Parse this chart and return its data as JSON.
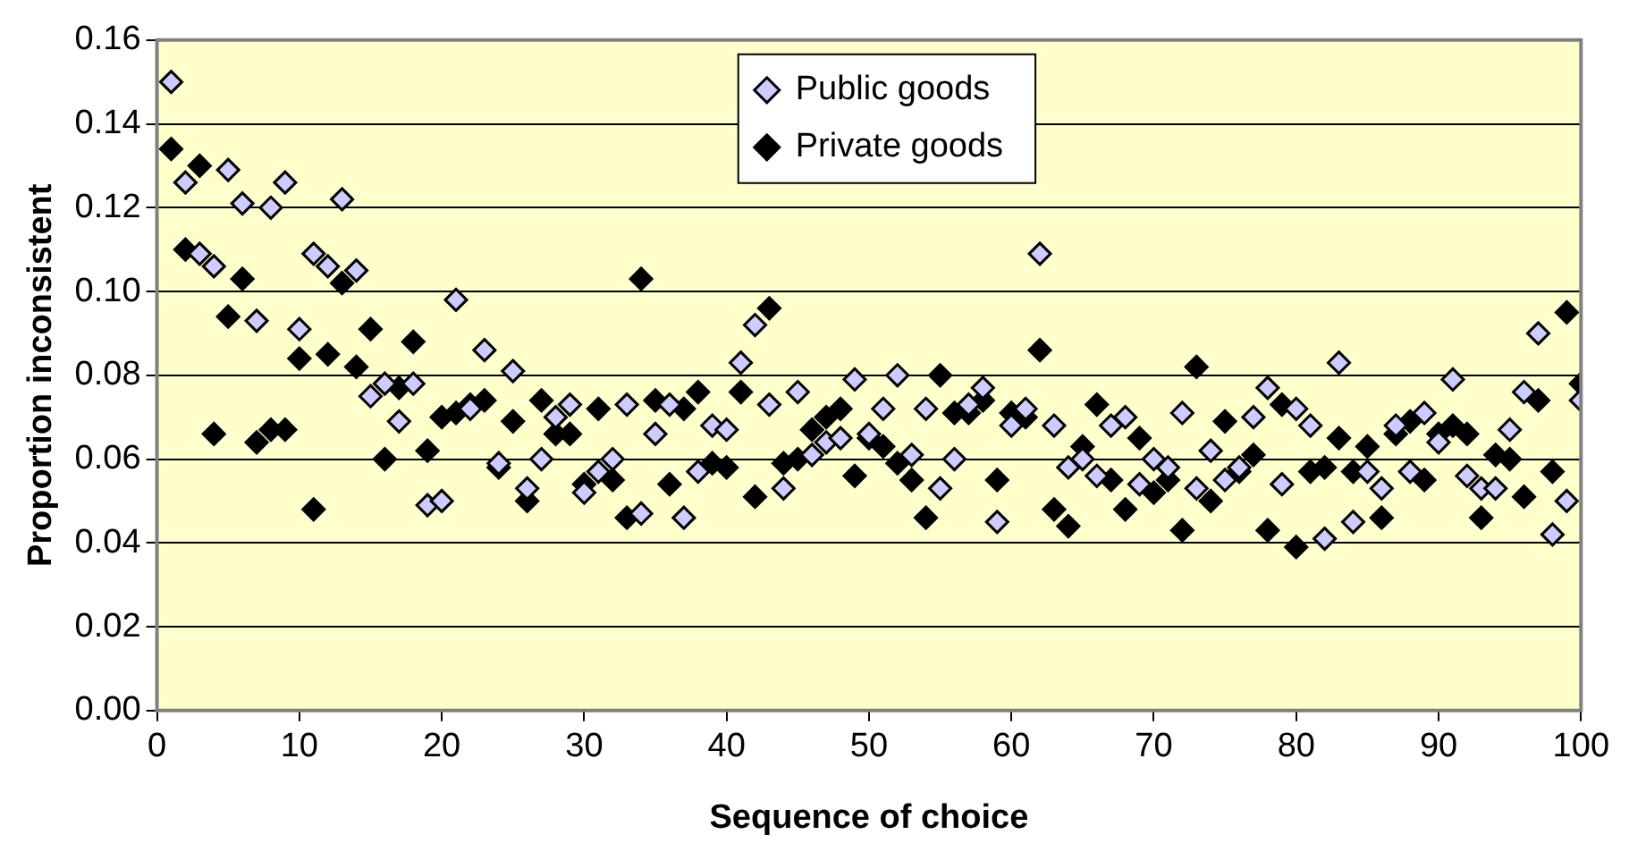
{
  "chart_data": {
    "type": "scatter",
    "xlabel": "Sequence of choice",
    "ylabel": "Proportion inconsistent",
    "x": [
      1,
      2,
      3,
      4,
      5,
      6,
      7,
      8,
      9,
      10,
      11,
      12,
      13,
      14,
      15,
      16,
      17,
      18,
      19,
      20,
      21,
      22,
      23,
      24,
      25,
      26,
      27,
      28,
      29,
      30,
      31,
      32,
      33,
      34,
      35,
      36,
      37,
      38,
      39,
      40,
      41,
      42,
      43,
      44,
      45,
      46,
      47,
      48,
      49,
      50,
      51,
      52,
      53,
      54,
      55,
      56,
      57,
      58,
      59,
      60,
      61,
      62,
      63,
      64,
      65,
      66,
      67,
      68,
      69,
      70,
      71,
      72,
      73,
      74,
      75,
      76,
      77,
      78,
      79,
      80,
      81,
      82,
      83,
      84,
      85,
      86,
      87,
      88,
      89,
      90,
      91,
      92,
      93,
      94,
      95,
      96,
      97,
      98,
      99,
      100
    ],
    "series": [
      {
        "name": "Public goods",
        "color": "#ccccff",
        "values": [
          0.15,
          0.126,
          0.109,
          0.106,
          0.129,
          0.121,
          0.093,
          0.12,
          0.126,
          0.091,
          0.109,
          0.106,
          0.122,
          0.105,
          0.075,
          0.078,
          0.069,
          0.078,
          0.049,
          0.05,
          0.098,
          0.072,
          0.086,
          0.059,
          0.081,
          0.053,
          0.06,
          0.07,
          0.073,
          0.052,
          0.057,
          0.06,
          0.073,
          0.047,
          0.066,
          0.073,
          0.046,
          0.057,
          0.068,
          0.067,
          0.083,
          0.092,
          0.073,
          0.053,
          0.076,
          0.061,
          0.064,
          0.065,
          0.079,
          0.066,
          0.072,
          0.08,
          0.061,
          0.072,
          0.053,
          0.06,
          0.073,
          0.077,
          0.045,
          0.068,
          0.072,
          0.109,
          0.068,
          0.058,
          0.06,
          0.056,
          0.068,
          0.07,
          0.054,
          0.06,
          0.058,
          0.071,
          0.053,
          0.062,
          0.055,
          0.058,
          0.07,
          0.077,
          0.054,
          0.072,
          0.068,
          0.041,
          0.083,
          0.045,
          0.057,
          0.053,
          0.068,
          0.057,
          0.071,
          0.064,
          0.079,
          0.056,
          0.053,
          0.053,
          0.067,
          0.076,
          0.09,
          0.042,
          0.05,
          0.074
        ]
      },
      {
        "name": "Private goods",
        "color": "#000000",
        "values": [
          0.134,
          0.11,
          0.13,
          0.066,
          0.094,
          0.103,
          0.064,
          0.067,
          0.067,
          0.084,
          0.048,
          0.085,
          0.102,
          0.082,
          0.091,
          0.06,
          0.077,
          0.088,
          0.062,
          0.07,
          0.071,
          0.073,
          0.074,
          0.058,
          0.069,
          0.05,
          0.074,
          0.066,
          0.066,
          0.054,
          0.072,
          0.055,
          0.046,
          0.103,
          0.074,
          0.054,
          0.072,
          0.076,
          0.059,
          0.058,
          0.076,
          0.051,
          0.096,
          0.059,
          0.06,
          0.067,
          0.07,
          0.072,
          0.056,
          0.065,
          0.063,
          0.059,
          0.055,
          0.046,
          0.08,
          0.071,
          0.071,
          0.074,
          0.055,
          0.071,
          0.07,
          0.086,
          0.048,
          0.044,
          0.063,
          0.073,
          0.055,
          0.048,
          0.065,
          0.052,
          0.055,
          0.043,
          0.082,
          0.05,
          0.069,
          0.057,
          0.061,
          0.043,
          0.073,
          0.039,
          0.057,
          0.058,
          0.065,
          0.057,
          0.063,
          0.046,
          0.066,
          0.069,
          0.055,
          0.066,
          0.068,
          0.066,
          0.046,
          0.061,
          0.06,
          0.051,
          0.074,
          0.057,
          0.095,
          0.078
        ]
      }
    ],
    "xlim": [
      0,
      100
    ],
    "xticks": [
      0,
      10,
      20,
      30,
      40,
      50,
      60,
      70,
      80,
      90,
      100
    ],
    "ylim": [
      0,
      0.16
    ],
    "yticks": [
      {
        "value": 0,
        "label": "0.00"
      },
      {
        "value": 0.02,
        "label": "0.02"
      },
      {
        "value": 0.04,
        "label": "0.04"
      },
      {
        "value": 0.06,
        "label": "0.06"
      },
      {
        "value": 0.08,
        "label": "0.08"
      },
      {
        "value": 0.1,
        "label": "0.10"
      },
      {
        "value": 0.12,
        "label": "0.12"
      },
      {
        "value": 0.14,
        "label": "0.14"
      },
      {
        "value": 0.16,
        "label": "0.16"
      }
    ],
    "grid": "y",
    "legend": "top",
    "marker": "diamond"
  }
}
